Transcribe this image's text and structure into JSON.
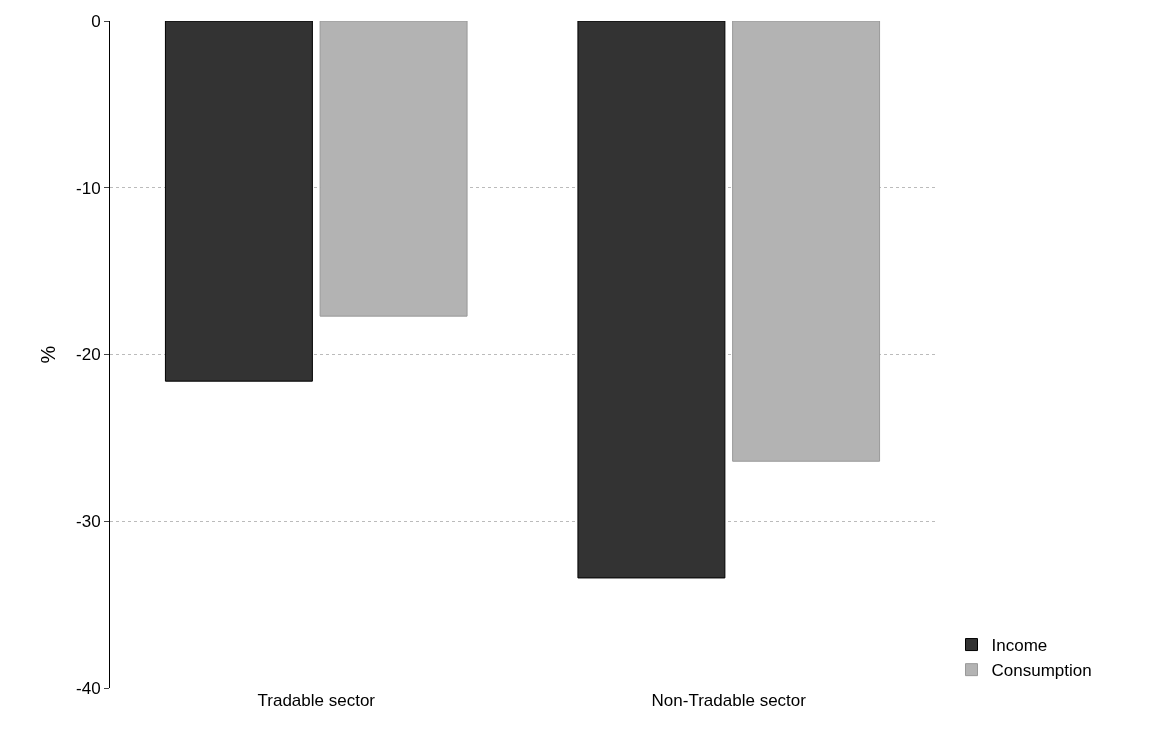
{
  "chart_data": {
    "type": "bar",
    "ylabel": "%",
    "categories": [
      "Tradable sector",
      "Non-Tradable sector"
    ],
    "series": [
      {
        "name": "Income",
        "color": "#333333",
        "values": [
          -21.6,
          -33.4
        ]
      },
      {
        "name": "Consumption",
        "color": "#b3b3b3",
        "values": [
          -17.7,
          -26.4
        ]
      }
    ],
    "ylim": [
      -40,
      0
    ],
    "yticks": [
      -40,
      -30,
      -20,
      -10,
      0
    ],
    "grid": "y",
    "legend": "bottom right"
  }
}
